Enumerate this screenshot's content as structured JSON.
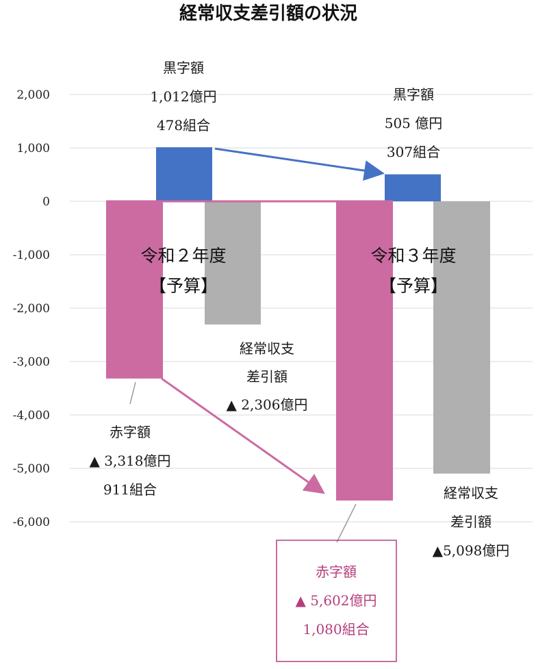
{
  "chart_data": {
    "type": "bar",
    "title": "経常収支差引額の状況",
    "yticks": [
      "2,000",
      "1,000",
      "0",
      "-1,000",
      "-2,000",
      "-3,000",
      "-4,000",
      "-5,000",
      "-6,000"
    ],
    "ylim": [
      -6000,
      2000
    ],
    "grid": true,
    "periods": [
      {
        "label_line1": "令和２年度",
        "label_line2": "【予算】",
        "surplus": 1012,
        "deficit": -3318,
        "balance": -2306,
        "surplus_label": [
          "黒字額",
          "1,012億円",
          "478組合"
        ],
        "deficit_label": [
          "赤字額",
          "▲ 3,318億円",
          "911組合"
        ],
        "balance_label": [
          "経常収支",
          "差引額",
          "▲ 2,306億円"
        ]
      },
      {
        "label_line1": "令和３年度",
        "label_line2": "【予算】",
        "surplus": 505,
        "deficit": -5602,
        "balance": -5098,
        "surplus_label": [
          "黒字額",
          "505 億円",
          "307組合"
        ],
        "deficit_label": [
          "赤字額",
          "▲ 5,602億円",
          "1,080組合"
        ],
        "balance_label": [
          "経常収支",
          "差引額",
          "▲5,098億円"
        ]
      }
    ],
    "colors": {
      "surplus": "#4472c4",
      "deficit": "#cc6aa2",
      "balance": "#b0b0b0",
      "deficit_text": "#b43f7c"
    }
  }
}
